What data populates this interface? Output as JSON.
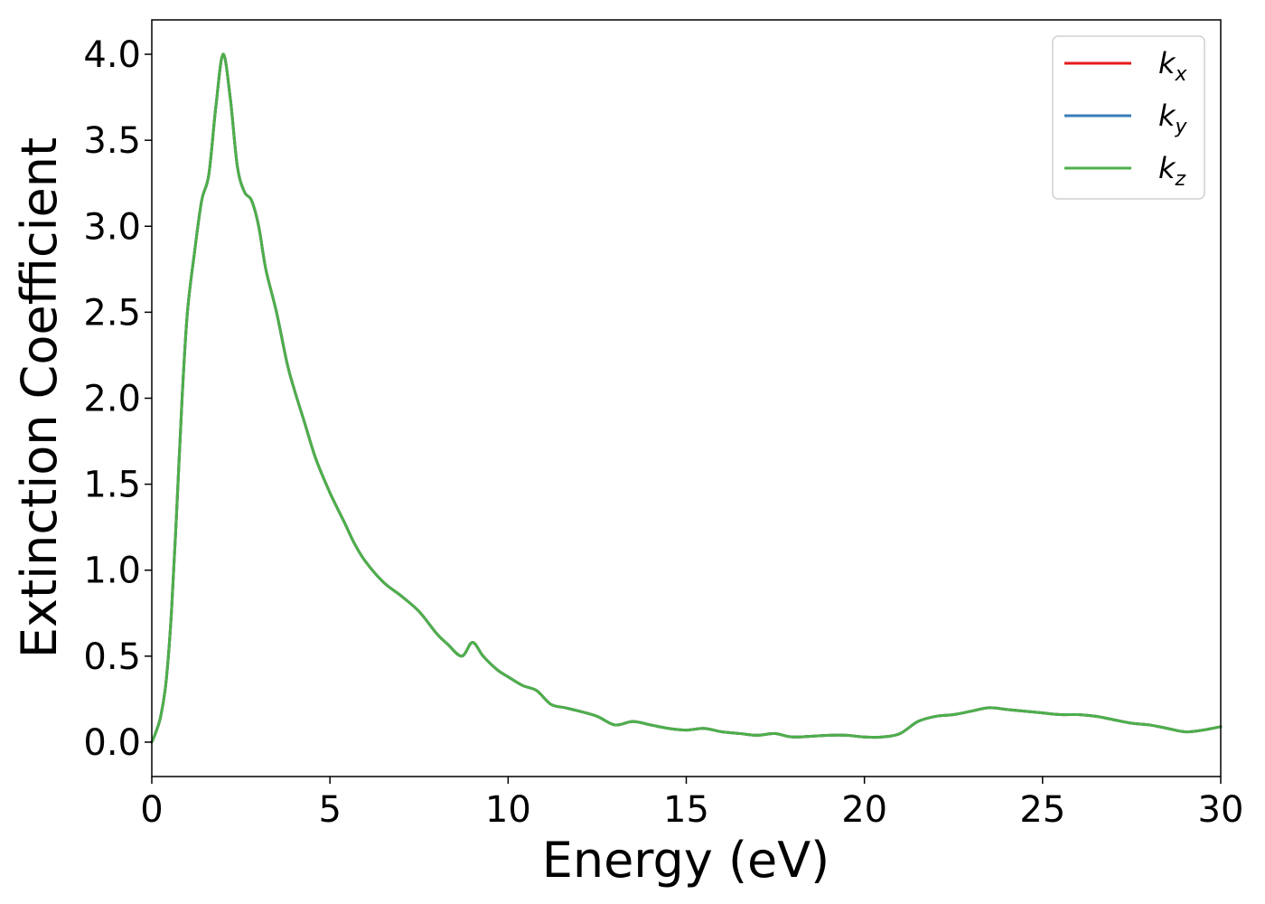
{
  "chart_data": {
    "type": "line",
    "title": "",
    "xlabel": "Energy (eV)",
    "ylabel": "Extinction Coefficient",
    "xlim": [
      0,
      30
    ],
    "ylim": [
      -0.2,
      4.2
    ],
    "xticks": [
      0,
      5,
      10,
      15,
      20,
      25,
      30
    ],
    "xtick_labels": [
      "0",
      "5",
      "10",
      "15",
      "20",
      "25",
      "30"
    ],
    "yticks": [
      0.0,
      0.5,
      1.0,
      1.5,
      2.0,
      2.5,
      3.0,
      3.5,
      4.0
    ],
    "ytick_labels": [
      "0.0",
      "0.5",
      "1.0",
      "1.5",
      "2.0",
      "2.5",
      "3.0",
      "3.5",
      "4.0"
    ],
    "grid": false,
    "legend_position": "top-right",
    "series": [
      {
        "name": "k_x",
        "label_base": "k",
        "label_sub": "x",
        "color": "#e41a1c",
        "x": [
          0,
          0.1,
          0.25,
          0.4,
          0.55,
          0.7,
          0.85,
          1.0,
          1.2,
          1.4,
          1.6,
          1.8,
          2.0,
          2.2,
          2.4,
          2.6,
          2.8,
          3.0,
          3.2,
          3.5,
          3.8,
          4.0,
          4.3,
          4.6,
          5.0,
          5.4,
          5.7,
          6.0,
          6.5,
          7.0,
          7.5,
          8.0,
          8.3,
          8.7,
          9.0,
          9.3,
          9.7,
          10.0,
          10.4,
          10.8,
          11.2,
          11.6,
          12.0,
          12.5,
          13.0,
          13.5,
          14.0,
          14.5,
          15.0,
          15.5,
          16.0,
          16.5,
          17.0,
          17.5,
          18.0,
          19.0,
          19.5,
          20.0,
          20.5,
          21.0,
          21.5,
          22.0,
          22.5,
          23.0,
          23.5,
          24.0,
          24.5,
          25.0,
          25.5,
          26.0,
          26.5,
          27.0,
          27.5,
          28.0,
          28.5,
          29.0,
          29.5,
          30.0
        ],
        "y": [
          0.0,
          0.05,
          0.15,
          0.35,
          0.75,
          1.35,
          2.0,
          2.5,
          2.85,
          3.15,
          3.3,
          3.7,
          4.0,
          3.75,
          3.35,
          3.2,
          3.15,
          3.0,
          2.75,
          2.5,
          2.2,
          2.05,
          1.85,
          1.65,
          1.45,
          1.28,
          1.15,
          1.05,
          0.93,
          0.85,
          0.76,
          0.63,
          0.57,
          0.5,
          0.58,
          0.5,
          0.42,
          0.38,
          0.33,
          0.3,
          0.22,
          0.2,
          0.18,
          0.15,
          0.1,
          0.12,
          0.1,
          0.08,
          0.07,
          0.08,
          0.06,
          0.05,
          0.04,
          0.05,
          0.03,
          0.04,
          0.04,
          0.03,
          0.03,
          0.05,
          0.12,
          0.15,
          0.16,
          0.18,
          0.2,
          0.19,
          0.18,
          0.17,
          0.16,
          0.16,
          0.15,
          0.13,
          0.11,
          0.1,
          0.08,
          0.06,
          0.07,
          0.09
        ]
      },
      {
        "name": "k_y",
        "label_base": "k",
        "label_sub": "y",
        "color": "#377eb8",
        "x": [
          0,
          0.1,
          0.25,
          0.4,
          0.55,
          0.7,
          0.85,
          1.0,
          1.2,
          1.4,
          1.6,
          1.8,
          2.0,
          2.2,
          2.4,
          2.6,
          2.8,
          3.0,
          3.2,
          3.5,
          3.8,
          4.0,
          4.3,
          4.6,
          5.0,
          5.4,
          5.7,
          6.0,
          6.5,
          7.0,
          7.5,
          8.0,
          8.3,
          8.7,
          9.0,
          9.3,
          9.7,
          10.0,
          10.4,
          10.8,
          11.2,
          11.6,
          12.0,
          12.5,
          13.0,
          13.5,
          14.0,
          14.5,
          15.0,
          15.5,
          16.0,
          16.5,
          17.0,
          17.5,
          18.0,
          19.0,
          19.5,
          20.0,
          20.5,
          21.0,
          21.5,
          22.0,
          22.5,
          23.0,
          23.5,
          24.0,
          24.5,
          25.0,
          25.5,
          26.0,
          26.5,
          27.0,
          27.5,
          28.0,
          28.5,
          29.0,
          29.5,
          30.0
        ],
        "y": [
          0.0,
          0.05,
          0.15,
          0.35,
          0.75,
          1.35,
          2.0,
          2.5,
          2.85,
          3.15,
          3.3,
          3.7,
          4.0,
          3.75,
          3.35,
          3.2,
          3.15,
          3.0,
          2.75,
          2.5,
          2.2,
          2.05,
          1.85,
          1.65,
          1.45,
          1.28,
          1.15,
          1.05,
          0.93,
          0.85,
          0.76,
          0.63,
          0.57,
          0.5,
          0.58,
          0.5,
          0.42,
          0.38,
          0.33,
          0.3,
          0.22,
          0.2,
          0.18,
          0.15,
          0.1,
          0.12,
          0.1,
          0.08,
          0.07,
          0.08,
          0.06,
          0.05,
          0.04,
          0.05,
          0.03,
          0.04,
          0.04,
          0.03,
          0.03,
          0.05,
          0.12,
          0.15,
          0.16,
          0.18,
          0.2,
          0.19,
          0.18,
          0.17,
          0.16,
          0.16,
          0.15,
          0.13,
          0.11,
          0.1,
          0.08,
          0.06,
          0.07,
          0.09
        ]
      },
      {
        "name": "k_z",
        "label_base": "k",
        "label_sub": "z",
        "color": "#4daf4a",
        "x": [
          0,
          0.1,
          0.25,
          0.4,
          0.55,
          0.7,
          0.85,
          1.0,
          1.2,
          1.4,
          1.6,
          1.8,
          2.0,
          2.2,
          2.4,
          2.6,
          2.8,
          3.0,
          3.2,
          3.5,
          3.8,
          4.0,
          4.3,
          4.6,
          5.0,
          5.4,
          5.7,
          6.0,
          6.5,
          7.0,
          7.5,
          8.0,
          8.3,
          8.7,
          9.0,
          9.3,
          9.7,
          10.0,
          10.4,
          10.8,
          11.2,
          11.6,
          12.0,
          12.5,
          13.0,
          13.5,
          14.0,
          14.5,
          15.0,
          15.5,
          16.0,
          16.5,
          17.0,
          17.5,
          18.0,
          19.0,
          19.5,
          20.0,
          20.5,
          21.0,
          21.5,
          22.0,
          22.5,
          23.0,
          23.5,
          24.0,
          24.5,
          25.0,
          25.5,
          26.0,
          26.5,
          27.0,
          27.5,
          28.0,
          28.5,
          29.0,
          29.5,
          30.0
        ],
        "y": [
          0.0,
          0.05,
          0.15,
          0.35,
          0.75,
          1.35,
          2.0,
          2.5,
          2.85,
          3.15,
          3.3,
          3.7,
          4.0,
          3.75,
          3.35,
          3.2,
          3.15,
          3.0,
          2.75,
          2.5,
          2.2,
          2.05,
          1.85,
          1.65,
          1.45,
          1.28,
          1.15,
          1.05,
          0.93,
          0.85,
          0.76,
          0.63,
          0.57,
          0.5,
          0.58,
          0.5,
          0.42,
          0.38,
          0.33,
          0.3,
          0.22,
          0.2,
          0.18,
          0.15,
          0.1,
          0.12,
          0.1,
          0.08,
          0.07,
          0.08,
          0.06,
          0.05,
          0.04,
          0.05,
          0.03,
          0.04,
          0.04,
          0.03,
          0.03,
          0.05,
          0.12,
          0.15,
          0.16,
          0.18,
          0.2,
          0.19,
          0.18,
          0.17,
          0.16,
          0.16,
          0.15,
          0.13,
          0.11,
          0.1,
          0.08,
          0.06,
          0.07,
          0.09
        ]
      }
    ]
  }
}
